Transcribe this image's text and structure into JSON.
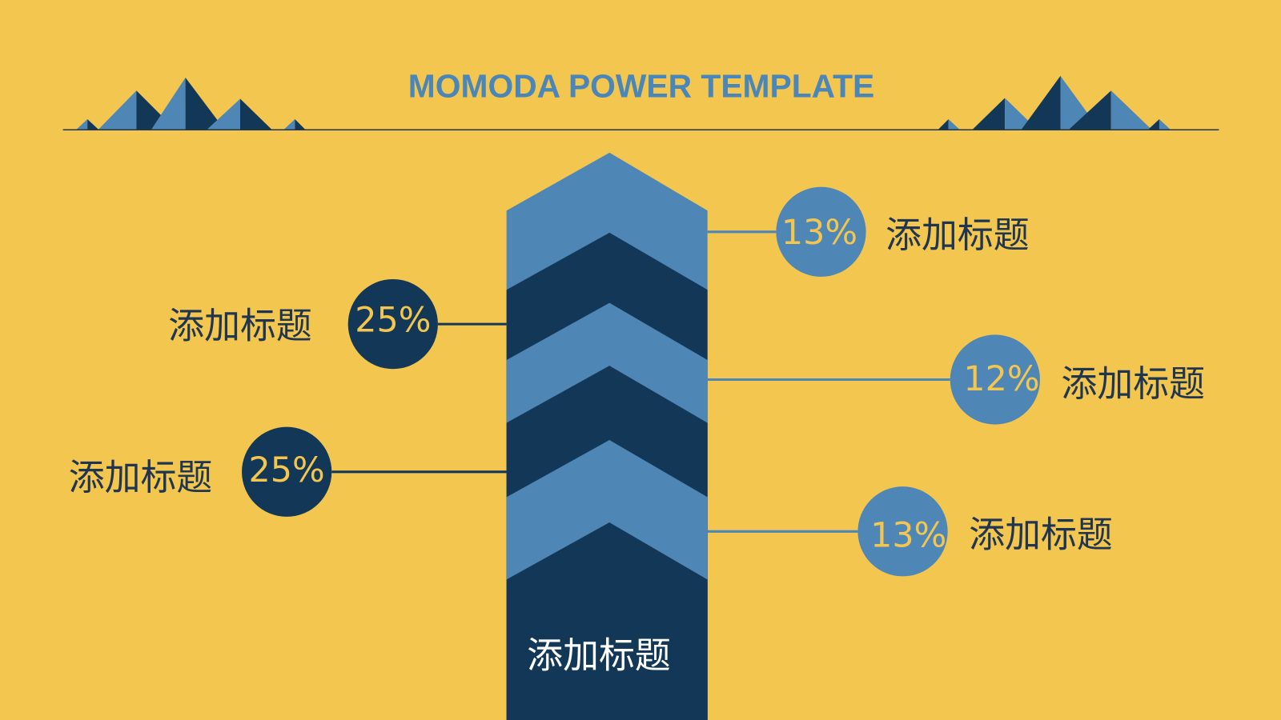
{
  "title": "MOMODA POWER TEMPLATE",
  "colors": {
    "background": "#f3c650",
    "light_blue": "#4e86b6",
    "dark_blue": "#133756",
    "label_text": "#1f3550",
    "percent_text": "#f3c650"
  },
  "center_label": "添加标题",
  "items": [
    {
      "side": "right",
      "percent": "13%",
      "label": "添加标题",
      "circle_color": "light_blue"
    },
    {
      "side": "left",
      "percent": "25%",
      "label": "添加标题",
      "circle_color": "dark_blue"
    },
    {
      "side": "right",
      "percent": "12%",
      "label": "添加标题",
      "circle_color": "light_blue"
    },
    {
      "side": "left",
      "percent": "25%",
      "label": "添加标题",
      "circle_color": "dark_blue"
    },
    {
      "side": "right",
      "percent": "13%",
      "label": "添加标题",
      "circle_color": "light_blue"
    }
  ]
}
